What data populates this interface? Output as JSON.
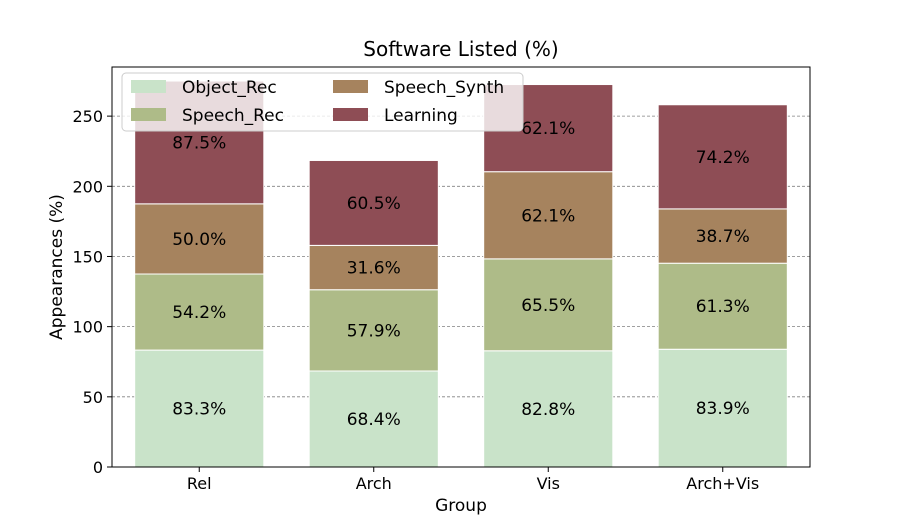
{
  "chart_data": {
    "type": "bar",
    "stacked": true,
    "title": "Software Listed (%)",
    "xlabel": "Group",
    "ylabel": "Appearances (%)",
    "categories": [
      "Rel",
      "Arch",
      "Vis",
      "Arch+Vis"
    ],
    "ylim": [
      0,
      285
    ],
    "yticks": [
      0,
      50,
      100,
      150,
      200,
      250
    ],
    "grid": "horizontal-dashed",
    "legend": {
      "position": "top-left",
      "columns": 2
    },
    "series": [
      {
        "name": "Object_Rec",
        "color": "#c9e3c9",
        "values": [
          83.3,
          68.4,
          82.8,
          83.9
        ],
        "labels": [
          "83.3%",
          "68.4%",
          "82.8%",
          "83.9%"
        ]
      },
      {
        "name": "Speech_Rec",
        "color": "#aebb88",
        "values": [
          54.2,
          57.9,
          65.5,
          61.3
        ],
        "labels": [
          "54.2%",
          "57.9%",
          "65.5%",
          "61.3%"
        ]
      },
      {
        "name": "Speech_Synth",
        "color": "#a6835e",
        "values": [
          50.0,
          31.6,
          62.1,
          38.7
        ],
        "labels": [
          "50.0%",
          "31.6%",
          "62.1%",
          "38.7%"
        ]
      },
      {
        "name": "Learning",
        "color": "#8e4d55",
        "values": [
          87.5,
          60.5,
          62.1,
          74.2
        ],
        "labels": [
          "87.5%",
          "60.5%",
          "62.1%",
          "74.2%"
        ]
      }
    ]
  }
}
